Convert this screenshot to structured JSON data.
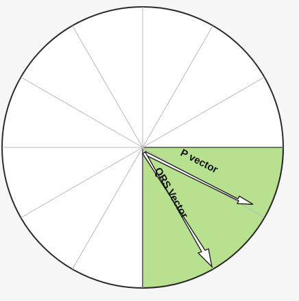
{
  "diagram": {
    "labels": {
      "p_vector": "P vector",
      "qrs_vector": "QRS Vector"
    },
    "colors": {
      "background": "#f6f6f6",
      "circle_fill": "#ffffff",
      "circle_stroke": "#2a2a2a",
      "spoke": "#b8b8b8",
      "quadrant_fill": "#b7e08f",
      "arrow_fill": "#ffffff",
      "arrow_stroke": "#222222"
    },
    "segments": 12,
    "highlighted_sector": "lower-right quadrant"
  }
}
